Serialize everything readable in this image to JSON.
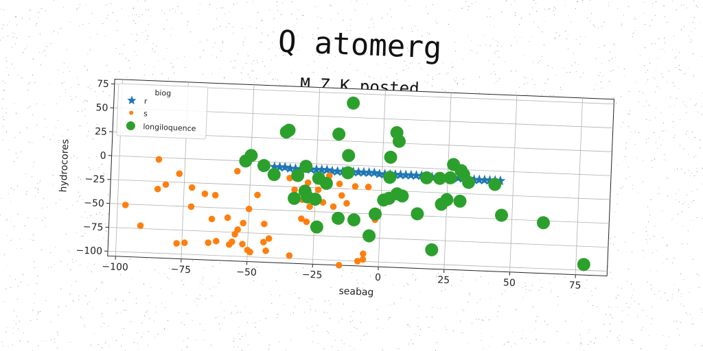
{
  "chart_data": {
    "type": "scatter",
    "title": "Q atomerg",
    "subtitle": "M Z K posted",
    "xlabel": "seabag",
    "ylabel": "hydrocores",
    "xlim": [
      -103,
      87
    ],
    "ylim": [
      -105,
      80
    ],
    "xticks": [
      -100,
      -75,
      -50,
      -25,
      0,
      25,
      50,
      75
    ],
    "yticks": [
      -100,
      -75,
      -50,
      -25,
      0,
      25,
      50,
      75
    ],
    "xtick_labels": [
      "−100",
      "−75",
      "−50",
      "−25",
      "0",
      "25",
      "50",
      "75"
    ],
    "ytick_labels": [
      "−100",
      "−75",
      "−50",
      "−25",
      "0",
      "25",
      "50",
      "75"
    ],
    "grid": true,
    "legend": {
      "title": "biog",
      "position": "top-left"
    },
    "series": [
      {
        "name": "r",
        "marker": "star",
        "color": "#1f77b4",
        "points": [
          [
            -41,
            -5
          ],
          [
            -39,
            -5
          ],
          [
            -37,
            -5
          ],
          [
            -35,
            -6
          ],
          [
            -33,
            -6
          ],
          [
            -31,
            -6
          ],
          [
            -29,
            -6
          ],
          [
            -27,
            -6
          ],
          [
            -25,
            -6
          ],
          [
            -23,
            -6
          ],
          [
            -21,
            -6
          ],
          [
            -19,
            -7
          ],
          [
            -17,
            -7
          ],
          [
            -15,
            -7
          ],
          [
            -13,
            -7
          ],
          [
            -11,
            -7
          ],
          [
            -9,
            -7
          ],
          [
            -7,
            -7
          ],
          [
            -5,
            -7
          ],
          [
            -3,
            -7
          ],
          [
            -1,
            -8
          ],
          [
            1,
            -8
          ],
          [
            3,
            -8
          ],
          [
            5,
            -8
          ],
          [
            7,
            -8
          ],
          [
            9,
            -8
          ],
          [
            11,
            -8
          ],
          [
            13,
            -8
          ],
          [
            15,
            -8
          ],
          [
            17,
            -9
          ],
          [
            19,
            -9
          ],
          [
            21,
            -9
          ],
          [
            23,
            -9
          ],
          [
            25,
            -9
          ],
          [
            27,
            -9
          ],
          [
            29,
            -9
          ],
          [
            31,
            -9
          ],
          [
            33,
            -9
          ],
          [
            35,
            -10
          ],
          [
            37,
            -10
          ],
          [
            39,
            -10
          ],
          [
            41,
            -10
          ],
          [
            43,
            -10
          ],
          [
            45,
            -10
          ]
        ]
      },
      {
        "name": "s",
        "marker": "circle",
        "color": "#ff7f0e",
        "points": [
          [
            -85,
            -2
          ],
          [
            -77,
            -16
          ],
          [
            -82,
            -28
          ],
          [
            -85,
            -33
          ],
          [
            -97,
            -51
          ],
          [
            -72,
            -30
          ],
          [
            -67,
            -36
          ],
          [
            -63,
            -37
          ],
          [
            -72,
            -50
          ],
          [
            -91,
            -72
          ],
          [
            -64,
            -62
          ],
          [
            -58,
            -60
          ],
          [
            -47,
            -35
          ],
          [
            -50,
            -50
          ],
          [
            -52,
            -65
          ],
          [
            -54,
            -72
          ],
          [
            -55,
            -77
          ],
          [
            -56,
            -85
          ],
          [
            -62,
            -85
          ],
          [
            -65,
            -87
          ],
          [
            -57,
            -88
          ],
          [
            -74,
            -88
          ],
          [
            -77,
            -89
          ],
          [
            -52,
            -87
          ],
          [
            -50,
            -93
          ],
          [
            -49,
            -95
          ],
          [
            -44,
            -84
          ],
          [
            -42,
            -80
          ],
          [
            -44,
            -65
          ],
          [
            -43,
            -93
          ],
          [
            -34,
            -97
          ],
          [
            -35,
            -16
          ],
          [
            -33,
            -28
          ],
          [
            -30,
            -38
          ],
          [
            -30,
            -58
          ],
          [
            -28,
            -61
          ],
          [
            -27,
            -45
          ],
          [
            -22,
            -40
          ],
          [
            -18,
            -44
          ],
          [
            -16,
            -20
          ],
          [
            -15,
            -32
          ],
          [
            -13,
            -40
          ],
          [
            -10,
            -22
          ],
          [
            -5,
            -22
          ],
          [
            -6,
            -92
          ],
          [
            -8,
            -100
          ],
          [
            -15,
            -105
          ],
          [
            -24,
            -27
          ],
          [
            -55,
            -11
          ],
          [
            -28,
            -20
          ],
          [
            -20,
            -12
          ],
          [
            -6,
            -98
          ],
          [
            -2,
            -56
          ]
        ]
      },
      {
        "name": "longiloquence",
        "marker": "circle",
        "color": "#2ca02c",
        "points": [
          [
            -12,
            65
          ],
          [
            5,
            36
          ],
          [
            6,
            27
          ],
          [
            -36,
            34
          ],
          [
            -37,
            32
          ],
          [
            -17,
            32
          ],
          [
            -13,
            10
          ],
          [
            3,
            10
          ],
          [
            -50,
            6
          ],
          [
            -52,
            0
          ],
          [
            -45,
            -4
          ],
          [
            -41,
            -13
          ],
          [
            -29,
            -3
          ],
          [
            -32,
            -13
          ],
          [
            -24,
            -15
          ],
          [
            -21,
            -20
          ],
          [
            -13,
            -8
          ],
          [
            -29,
            -29
          ],
          [
            -28,
            -35
          ],
          [
            -33,
            -37
          ],
          [
            -25,
            -37
          ],
          [
            -10,
            -57
          ],
          [
            -16,
            -56
          ],
          [
            -24,
            -66
          ],
          [
            -2,
            -50
          ],
          [
            1,
            -35
          ],
          [
            3,
            -33
          ],
          [
            6,
            -28
          ],
          [
            8,
            -30
          ],
          [
            3,
            -11
          ],
          [
            17,
            -10
          ],
          [
            22,
            -10
          ],
          [
            26,
            -9
          ],
          [
            31,
            -5
          ],
          [
            33,
            -13
          ],
          [
            27,
            5
          ],
          [
            30,
            -1
          ],
          [
            43,
            -14
          ],
          [
            46,
            -46
          ],
          [
            62,
            -52
          ],
          [
            78,
            -94
          ],
          [
            23,
            -37
          ],
          [
            25,
            -32
          ],
          [
            30,
            -33
          ],
          [
            14,
            -48
          ],
          [
            20,
            -85
          ],
          [
            -4,
            -73
          ]
        ]
      }
    ]
  }
}
